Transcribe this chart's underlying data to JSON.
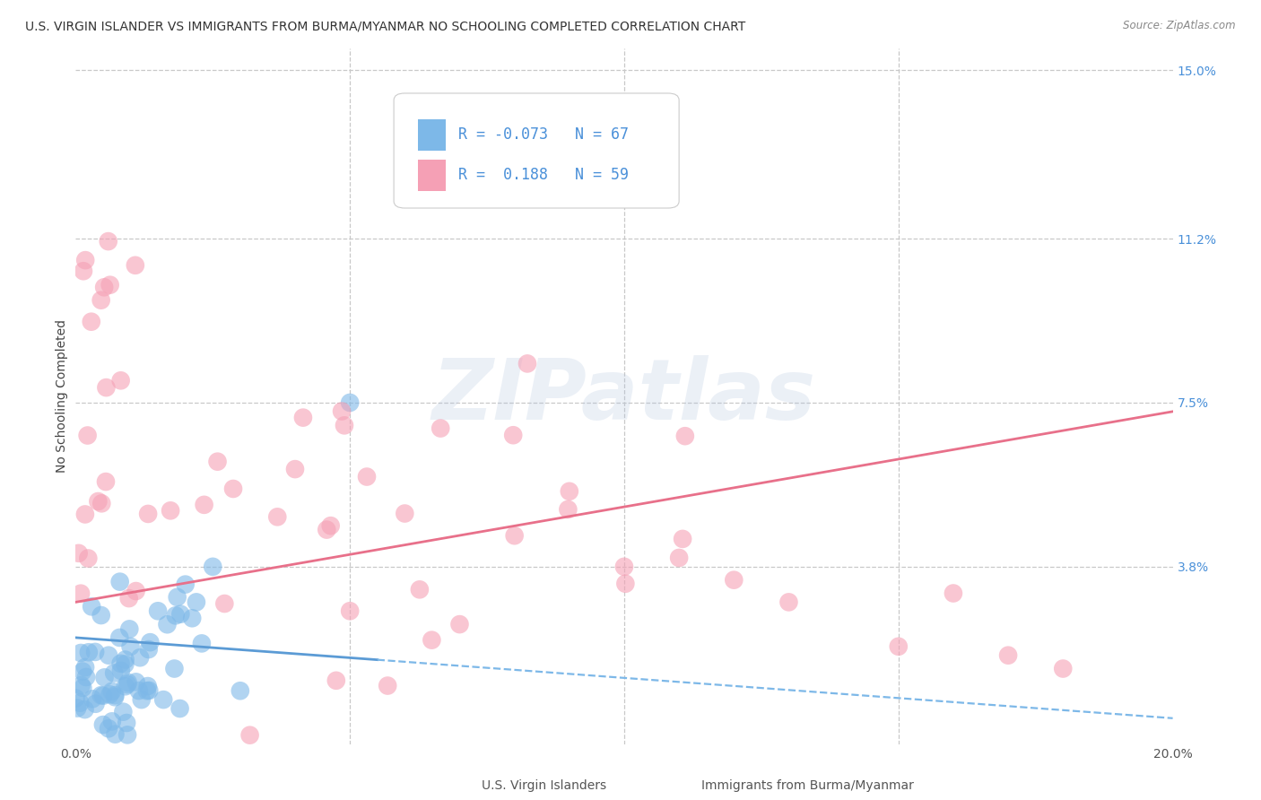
{
  "title": "U.S. VIRGIN ISLANDER VS IMMIGRANTS FROM BURMA/MYANMAR NO SCHOOLING COMPLETED CORRELATION CHART",
  "source": "Source: ZipAtlas.com",
  "ylabel": "No Schooling Completed",
  "xlabel_blue": "U.S. Virgin Islanders",
  "xlabel_pink": "Immigrants from Burma/Myanmar",
  "xlim": [
    0.0,
    0.2
  ],
  "ylim": [
    -0.002,
    0.155
  ],
  "yticks": [
    0.038,
    0.075,
    0.112,
    0.15
  ],
  "ytick_labels": [
    "3.8%",
    "7.5%",
    "11.2%",
    "15.0%"
  ],
  "xticks": [
    0.0,
    0.05,
    0.1,
    0.15,
    0.2
  ],
  "xtick_labels": [
    "0.0%",
    "",
    "",
    "",
    "20.0%"
  ],
  "r_blue": -0.073,
  "n_blue": 67,
  "r_pink": 0.188,
  "n_pink": 59,
  "blue_color": "#7db8e8",
  "pink_color": "#f5a0b5",
  "trend_blue_solid_color": "#5b9bd5",
  "trend_pink_solid_color": "#e8708a",
  "trend_blue_dash_color": "#7db8e8",
  "background_color": "#ffffff",
  "watermark": "ZIPatlas",
  "grid_color": "#c8c8c8",
  "title_fontsize": 10,
  "axis_label_fontsize": 10,
  "tick_fontsize": 10,
  "legend_fontsize": 12
}
